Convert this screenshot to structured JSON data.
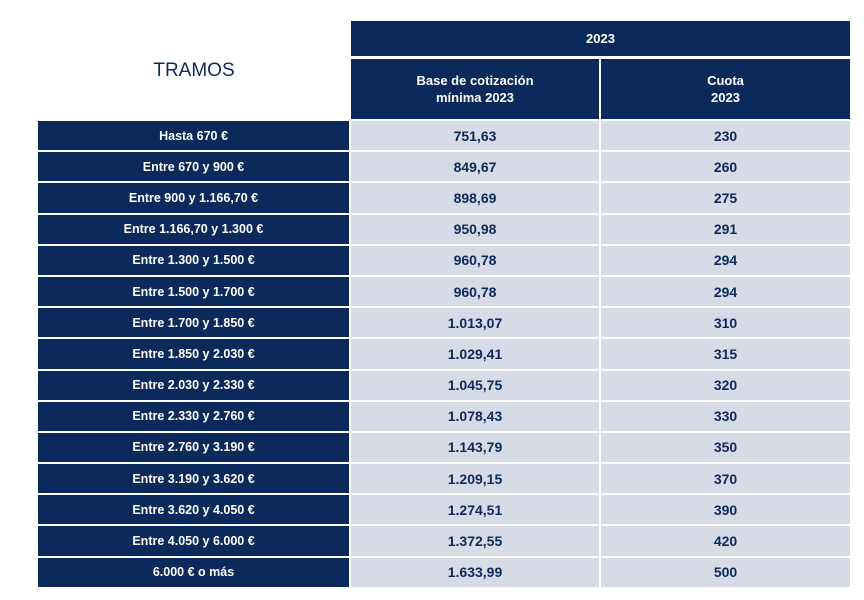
{
  "title": "TRAMOS",
  "header": {
    "year": "2023",
    "base_label": "Base de cotización\nmínima 2023",
    "cuota_label": "Cuota\n2023"
  },
  "rows": [
    {
      "tramo": "Hasta 670 €",
      "base": "751,63",
      "cuota": "230"
    },
    {
      "tramo": "Entre 670 y 900 €",
      "base": "849,67",
      "cuota": "260"
    },
    {
      "tramo": "Entre 900 y 1.166,70 €",
      "base": "898,69",
      "cuota": "275"
    },
    {
      "tramo": "Entre 1.166,70 y 1.300 €",
      "base": "950,98",
      "cuota": "291"
    },
    {
      "tramo": "Entre 1.300 y 1.500 €",
      "base": "960,78",
      "cuota": "294"
    },
    {
      "tramo": "Entre 1.500 y 1.700 €",
      "base": "960,78",
      "cuota": "294"
    },
    {
      "tramo": "Entre 1.700 y 1.850 €",
      "base": "1.013,07",
      "cuota": "310"
    },
    {
      "tramo": "Entre 1.850 y 2.030 €",
      "base": "1.029,41",
      "cuota": "315"
    },
    {
      "tramo": "Entre 2.030 y 2.330 €",
      "base": "1.045,75",
      "cuota": "320"
    },
    {
      "tramo": "Entre 2.330 y 2.760 €",
      "base": "1.078,43",
      "cuota": "330"
    },
    {
      "tramo": "Entre 2.760 y 3.190 €",
      "base": "1.143,79",
      "cuota": "350"
    },
    {
      "tramo": "Entre 3.190 y 3.620 €",
      "base": "1.209,15",
      "cuota": "370"
    },
    {
      "tramo": "Entre 3.620 y 4.050 €",
      "base": "1.274,51",
      "cuota": "390"
    },
    {
      "tramo": "Entre 4.050 y 6.000 €",
      "base": "1.372,55",
      "cuota": "420"
    },
    {
      "tramo": "6.000 € o más",
      "base": "1.633,99",
      "cuota": "500"
    }
  ],
  "colors": {
    "header_bg": "#0b2a5b",
    "value_bg": "#d6dbe5",
    "text_dark": "#0b2a5b"
  }
}
